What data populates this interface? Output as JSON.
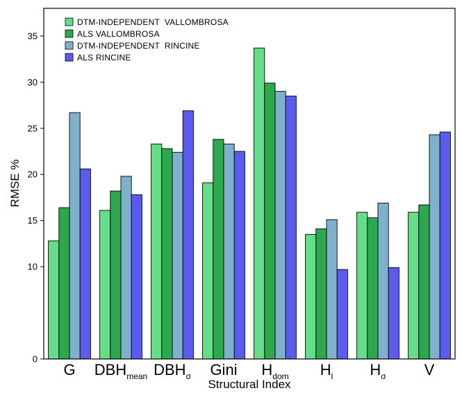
{
  "chart_data": {
    "type": "bar",
    "xlabel": "Structural Index",
    "ylabel": "RMSE %",
    "ylim": [
      0,
      38
    ],
    "yticks": [
      0,
      10,
      15,
      20,
      25,
      30,
      35
    ],
    "grid": false,
    "legend_position": "top-left",
    "categories": [
      {
        "main": "G",
        "sub": ""
      },
      {
        "main": "DBH",
        "sub": "mean"
      },
      {
        "main": "DBH",
        "sub": "σ"
      },
      {
        "main": "Gini",
        "sub": ""
      },
      {
        "main": "H",
        "sub": "dom"
      },
      {
        "main": "H",
        "sub": "l"
      },
      {
        "main": "H",
        "sub": "σ"
      },
      {
        "main": "V",
        "sub": ""
      }
    ],
    "series": [
      {
        "name": "DTM-INDEPENDENT  VALLOMBROSA",
        "color": "#66dd88",
        "values": [
          12.8,
          16.1,
          23.3,
          19.1,
          33.7,
          13.5,
          15.9,
          15.9
        ]
      },
      {
        "name": "ALS VALLOMBROSA",
        "color": "#2ea84e",
        "values": [
          16.4,
          18.2,
          22.8,
          23.8,
          29.9,
          14.1,
          15.3,
          16.7
        ]
      },
      {
        "name": "DTM-INDEPENDENT  RINCINE",
        "color": "#7fb0cc",
        "values": [
          26.7,
          19.8,
          22.4,
          23.3,
          29.0,
          15.1,
          16.9,
          24.3
        ]
      },
      {
        "name": "ALS RINCINE",
        "color": "#5b5bf0",
        "values": [
          20.6,
          17.8,
          26.9,
          22.5,
          28.5,
          9.7,
          9.9,
          24.6
        ]
      }
    ]
  }
}
